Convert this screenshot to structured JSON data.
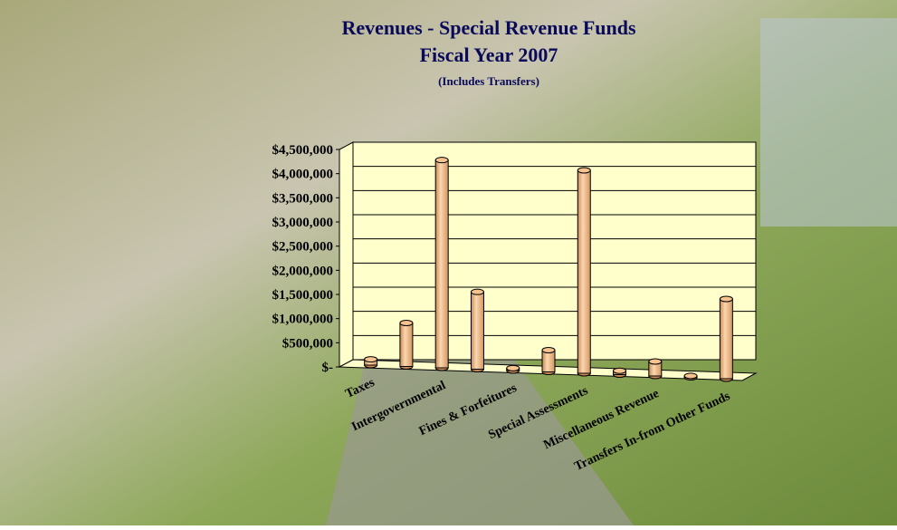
{
  "chart_data": {
    "type": "bar3d",
    "title": "Revenues - Special Revenue Funds",
    "subtitle": "Fiscal Year 2007",
    "note": "(Includes Transfers)",
    "categories": [
      "Taxes",
      null,
      "Intergovernmental",
      null,
      "Fines & Forfeitures",
      null,
      "Special Assessments",
      null,
      "Miscellaneous Revenue",
      null,
      "Transfers In-from Other Funds"
    ],
    "values": [
      120000,
      900000,
      4300000,
      1600000,
      50000,
      450000,
      4200000,
      80000,
      300000,
      30000,
      1650000
    ],
    "color": "#f6c28e",
    "ylim": [
      0,
      4500000
    ],
    "yticks": [
      {
        "value": 0,
        "label": "$-"
      },
      {
        "value": 500000,
        "label": "$500,000"
      },
      {
        "value": 1000000,
        "label": "$1,000,000"
      },
      {
        "value": 1500000,
        "label": "$1,500,000"
      },
      {
        "value": 2000000,
        "label": "$2,000,000"
      },
      {
        "value": 2500000,
        "label": "$2,500,000"
      },
      {
        "value": 3000000,
        "label": "$3,000,000"
      },
      {
        "value": 3500000,
        "label": "$3,500,000"
      },
      {
        "value": 4000000,
        "label": "$4,000,000"
      },
      {
        "value": 4500000,
        "label": "$4,500,000"
      }
    ],
    "grid": true
  }
}
